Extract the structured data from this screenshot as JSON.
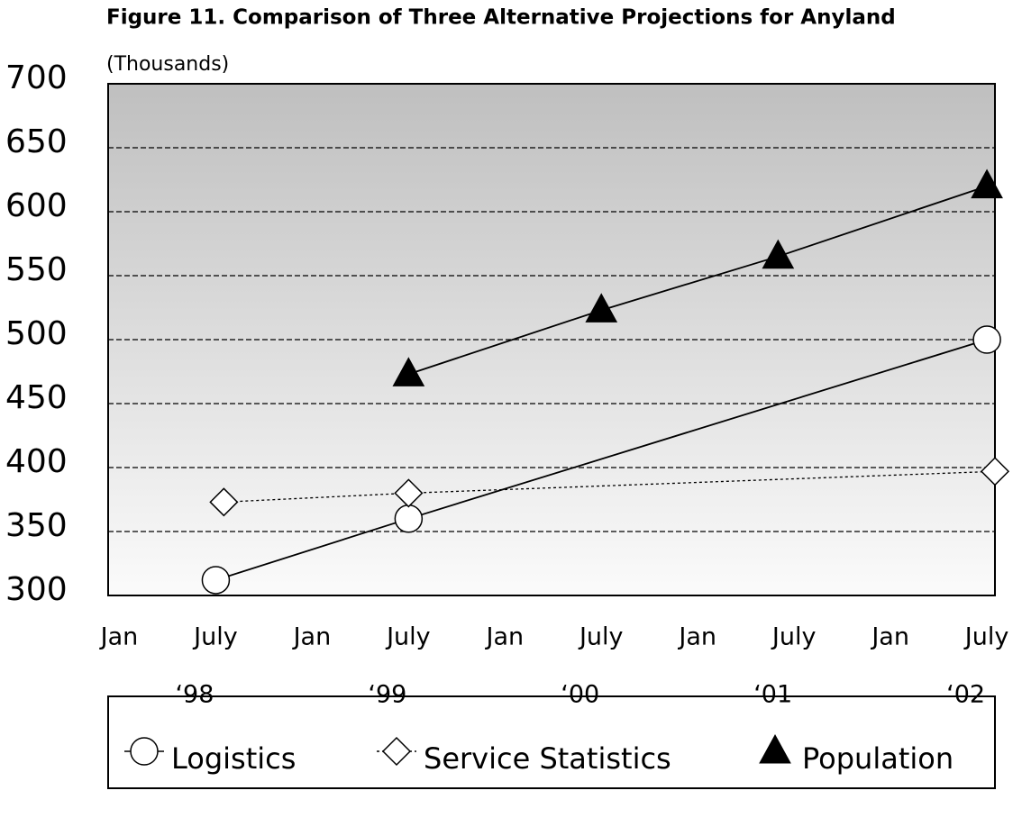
{
  "chart_data": {
    "type": "line",
    "title": "Figure 11. Comparison of Three Alternative Projections for Anyland",
    "y_label": "(Thousands)",
    "ylim": [
      300,
      700
    ],
    "yticks": [
      300,
      350,
      400,
      450,
      500,
      550,
      600,
      650,
      700
    ],
    "xlim": [
      -0.7,
      54.5
    ],
    "xticks": [
      {
        "value": 0,
        "label": "Jan"
      },
      {
        "value": 6,
        "label": "July"
      },
      {
        "value": 12,
        "label": "Jan"
      },
      {
        "value": 18,
        "label": "July"
      },
      {
        "value": 24,
        "label": "Jan"
      },
      {
        "value": 30,
        "label": "July"
      },
      {
        "value": 36,
        "label": "Jan"
      },
      {
        "value": 42,
        "label": "July"
      },
      {
        "value": 48,
        "label": "Jan"
      },
      {
        "value": 54,
        "label": "July"
      }
    ],
    "year_labels": [
      "‘98",
      "‘99",
      "‘00",
      "‘01",
      "‘02"
    ],
    "grid": true,
    "legend": "bottom",
    "series": [
      {
        "name": "Logistics",
        "color": "#000000",
        "marker": "circle",
        "line": "solid",
        "x": [
          6,
          18,
          54
        ],
        "values": [
          312,
          360,
          500
        ]
      },
      {
        "name": "Service Statistics",
        "color": "#000000",
        "marker": "diamond",
        "line": "dotted",
        "x": [
          6.5,
          18,
          54.5
        ],
        "values": [
          373,
          380,
          397
        ]
      },
      {
        "name": "Population",
        "color": "#000000",
        "marker": "triangle",
        "line": "solid",
        "x": [
          18,
          30,
          41,
          54
        ],
        "values": [
          473,
          523,
          565,
          620
        ]
      }
    ]
  }
}
